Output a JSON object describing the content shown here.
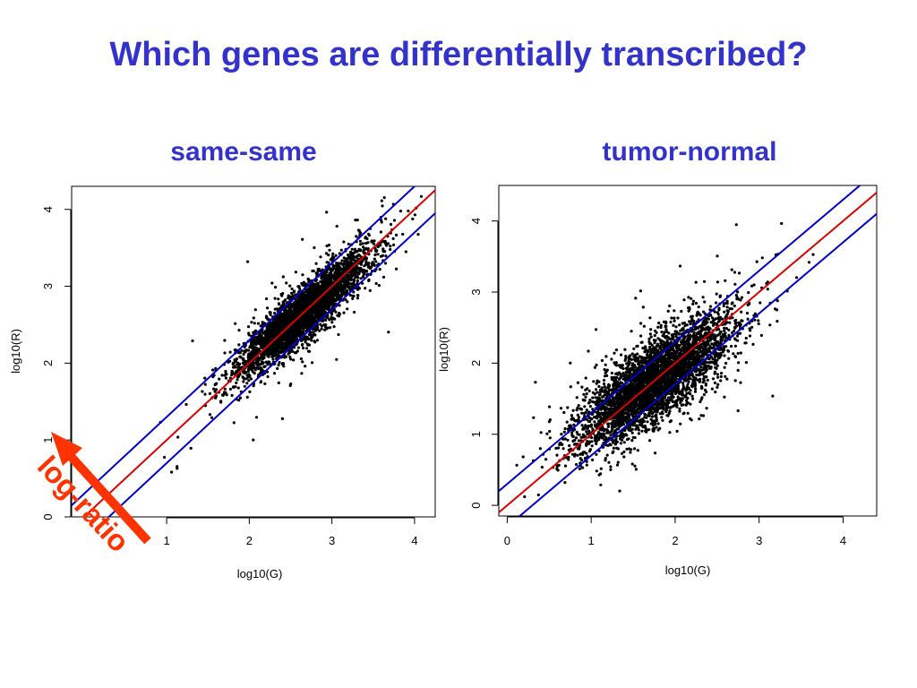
{
  "slide": {
    "title": "Which genes are differentially transcribed?"
  },
  "colors": {
    "title": "#3333cc",
    "points": "#000000",
    "diagonal": "#dd0000",
    "bands": "#0000cc",
    "annotation": "#ff3300"
  },
  "annotation": {
    "text": "log-ratio",
    "points_to": "y-axis of same-same plot",
    "icon": "arrow-icon"
  },
  "chart_data": [
    {
      "type": "scatter",
      "title": "same-same",
      "xlabel": "log10(G)",
      "ylabel": "log10(R)",
      "xlim": [
        -0.15,
        4.25
      ],
      "ylim": [
        0,
        4.3
      ],
      "x_ticks": [
        1,
        2,
        3,
        4
      ],
      "y_ticks": [
        0,
        1,
        2,
        3,
        4
      ],
      "grid": false,
      "reference_lines": [
        {
          "name": "y = x",
          "color": "red",
          "intercept": 0,
          "slope": 1
        },
        {
          "name": "y = x + 0.3",
          "color": "blue",
          "intercept": 0.3,
          "slope": 1
        },
        {
          "name": "y = x - 0.3",
          "color": "blue",
          "intercept": -0.3,
          "slope": 1
        }
      ],
      "point_cloud": {
        "n_points": 4000,
        "x_center": 2.65,
        "x_sd": 0.38,
        "y_center": 2.65,
        "y_sd": 0.38,
        "correlation": 0.9,
        "x_range_observed": [
          0.15,
          4.2
        ],
        "y_range_observed": [
          0.05,
          4.25
        ]
      }
    },
    {
      "type": "scatter",
      "title": "tumor-normal",
      "xlabel": "log10(G)",
      "ylabel": "log10(R)",
      "xlim": [
        -0.1,
        4.4
      ],
      "ylim": [
        -0.15,
        4.5
      ],
      "x_ticks": [
        0,
        1,
        2,
        3,
        4
      ],
      "y_ticks": [
        0,
        1,
        2,
        3,
        4
      ],
      "grid": false,
      "reference_lines": [
        {
          "name": "y = x",
          "color": "red",
          "intercept": 0,
          "slope": 1
        },
        {
          "name": "y = x + 0.3",
          "color": "blue",
          "intercept": 0.3,
          "slope": 1
        },
        {
          "name": "y = x - 0.3",
          "color": "blue",
          "intercept": -0.3,
          "slope": 1
        }
      ],
      "point_cloud": {
        "n_points": 4000,
        "x_center": 1.75,
        "x_sd": 0.45,
        "y_center": 1.75,
        "y_sd": 0.45,
        "correlation": 0.78,
        "x_range_observed": [
          0.05,
          3.8
        ],
        "y_range_observed": [
          0,
          4.3
        ]
      }
    }
  ]
}
